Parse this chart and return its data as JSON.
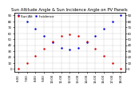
{
  "title": "Sun Altitude Angle & Sun Incidence Angle on PV Panels",
  "legend_label_alt": "Sun Alt",
  "legend_label_inc": "Incidence",
  "blue_color": "#0000dd",
  "red_color": "#dd0000",
  "x_hours": [
    6,
    7,
    8,
    9,
    10,
    11,
    12,
    13,
    14,
    15,
    16,
    17,
    18
  ],
  "sun_altitude": [
    0,
    10,
    22,
    34,
    46,
    55,
    58,
    55,
    46,
    34,
    22,
    10,
    0
  ],
  "incidence_angle": [
    90,
    80,
    68,
    56,
    45,
    35,
    32,
    35,
    45,
    56,
    68,
    80,
    90
  ],
  "ylim_left": [
    -5,
    95
  ],
  "ylim_right": [
    -5,
    95
  ],
  "yticks_left": [
    0,
    10,
    20,
    30,
    40,
    50,
    60,
    70,
    80,
    90
  ],
  "yticks_right": [
    0,
    10,
    20,
    30,
    40,
    50,
    60,
    70,
    80,
    90
  ],
  "background_color": "#ffffff",
  "grid_color": "#bbbbbb",
  "title_fontsize": 3.8,
  "legend_fontsize": 3.0,
  "tick_fontsize": 2.8,
  "xlim": [
    5.5,
    18.5
  ],
  "xtick_positions": [
    6,
    7,
    8,
    9,
    10,
    11,
    12,
    13,
    14,
    15,
    16,
    17,
    18
  ],
  "xtick_labels": [
    "6:00",
    "7:00",
    "8:00",
    "9:00",
    "10:00",
    "11:00",
    "12:00",
    "13:00",
    "14:00",
    "15:00",
    "16:00",
    "17:00",
    "18:00"
  ],
  "marker_size": 1.5,
  "line_width": 0.5
}
